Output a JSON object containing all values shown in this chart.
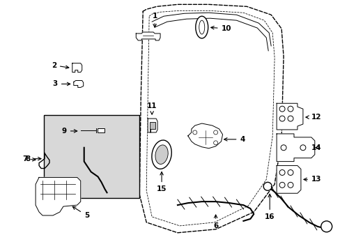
{
  "background_color": "#ffffff",
  "figsize": [
    4.89,
    3.6
  ],
  "dpi": 100,
  "text_color": "#000000",
  "label_fontsize": 7.5,
  "arrow_color": "#000000",
  "arrow_linewidth": 0.8
}
